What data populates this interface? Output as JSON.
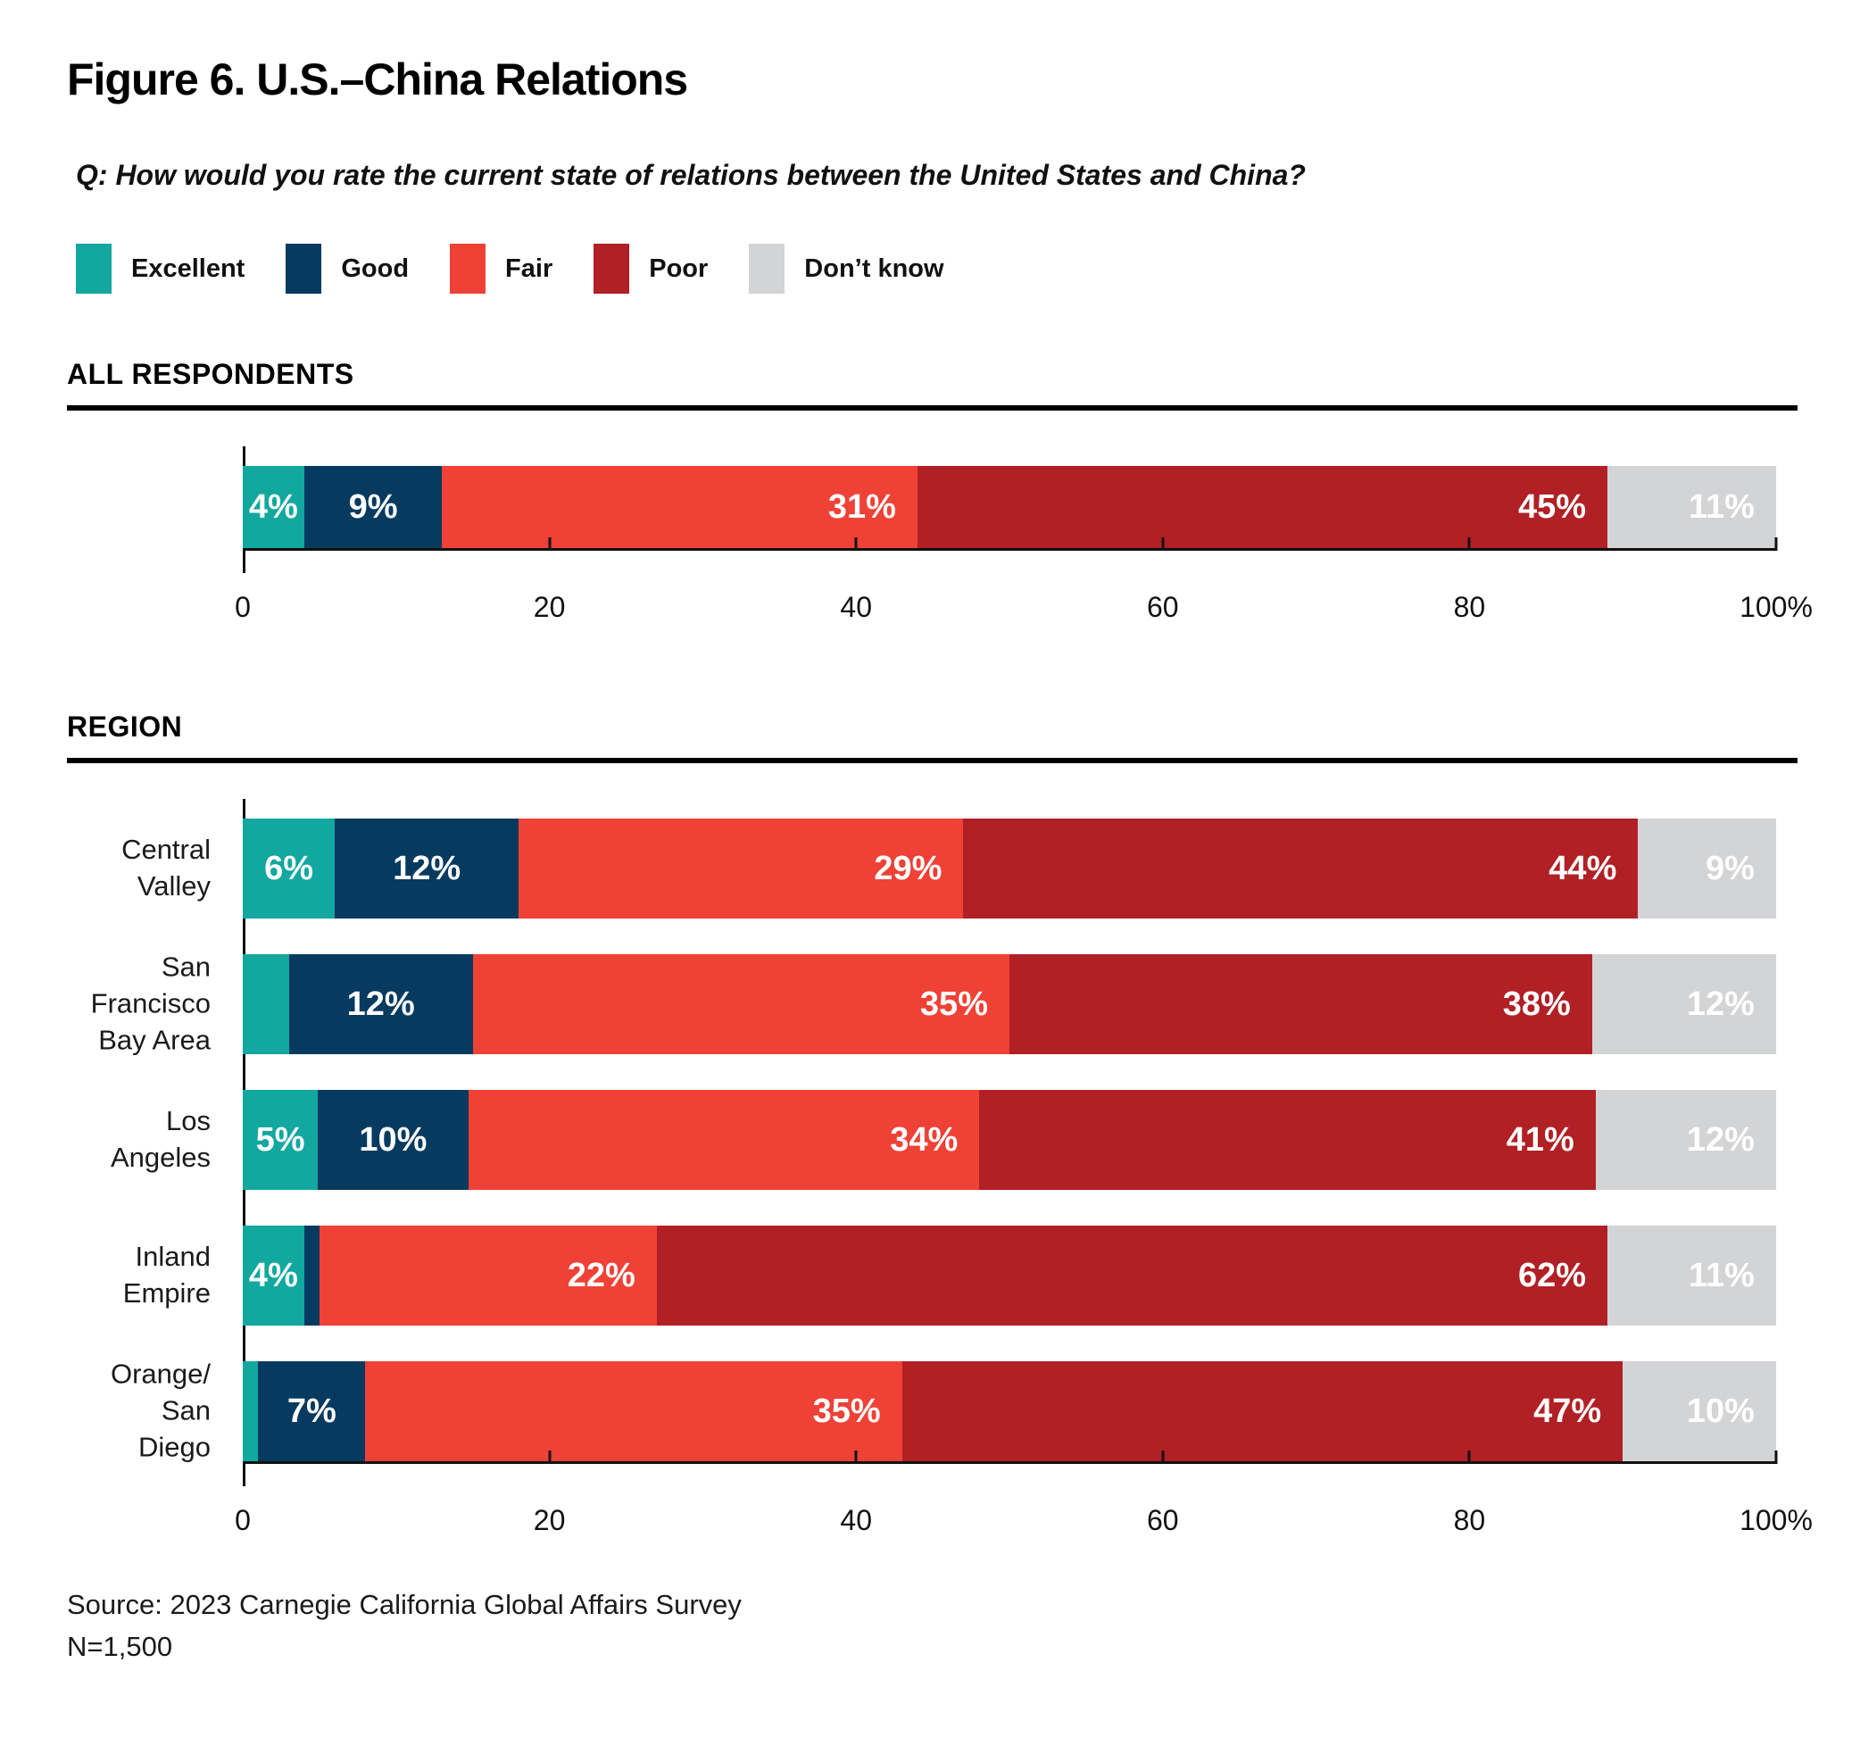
{
  "title": "Figure 6. U.S.–China Relations",
  "question": "Q: How would you rate the current state of relations between the United States and China?",
  "colors": {
    "excellent": "#12A79F",
    "good": "#063A5F",
    "fair": "#EF4136",
    "poor": "#B02025",
    "dont_know": "#D3D4D6",
    "axis": "#111111"
  },
  "legend": [
    {
      "label": "Excellent",
      "color": "#12A79F"
    },
    {
      "label": "Good",
      "color": "#063A5F"
    },
    {
      "label": "Fair",
      "color": "#EF4136"
    },
    {
      "label": "Poor",
      "color": "#B02025"
    },
    {
      "label": "Don’t know",
      "color": "#D3D4D6"
    }
  ],
  "sections": [
    {
      "heading": "ALL RESPONDENTS"
    },
    {
      "heading": "REGION"
    }
  ],
  "chart_data": [
    {
      "type": "bar",
      "stacked": true,
      "orientation": "horizontal",
      "section": "ALL RESPONDENTS",
      "categories": [
        ""
      ],
      "series": [
        {
          "name": "Excellent",
          "color": "#12A79F",
          "values": [
            4
          ]
        },
        {
          "name": "Good",
          "color": "#063A5F",
          "values": [
            9
          ]
        },
        {
          "name": "Fair",
          "color": "#EF4136",
          "values": [
            31
          ]
        },
        {
          "name": "Poor",
          "color": "#B02025",
          "values": [
            45
          ]
        },
        {
          "name": "Don’t know",
          "color": "#D3D4D6",
          "values": [
            11
          ]
        }
      ],
      "xlim": [
        0,
        100
      ],
      "xticks": [
        0,
        20,
        40,
        60,
        80,
        100
      ],
      "xtick_labels": [
        "0",
        "20",
        "40",
        "60",
        "80",
        "100%"
      ],
      "value_suffix": "%",
      "label_min": 4,
      "grid": false,
      "legend_position": "top"
    },
    {
      "type": "bar",
      "stacked": true,
      "orientation": "horizontal",
      "section": "REGION",
      "categories": [
        "Central Valley",
        "San Francisco\nBay Area",
        "Los Angeles",
        "Inland Empire",
        "Orange/\nSan Diego"
      ],
      "series": [
        {
          "name": "Excellent",
          "color": "#12A79F",
          "values": [
            6,
            3,
            5,
            4,
            1
          ]
        },
        {
          "name": "Good",
          "color": "#063A5F",
          "values": [
            12,
            12,
            10,
            1,
            7
          ]
        },
        {
          "name": "Fair",
          "color": "#EF4136",
          "values": [
            29,
            35,
            34,
            22,
            35
          ]
        },
        {
          "name": "Poor",
          "color": "#B02025",
          "values": [
            44,
            38,
            41,
            62,
            47
          ]
        },
        {
          "name": "Don’t know",
          "color": "#D3D4D6",
          "values": [
            9,
            12,
            12,
            11,
            10
          ]
        }
      ],
      "xlim": [
        0,
        100
      ],
      "xticks": [
        0,
        20,
        40,
        60,
        80,
        100
      ],
      "xtick_labels": [
        "0",
        "20",
        "40",
        "60",
        "80",
        "100%"
      ],
      "value_suffix": "%",
      "label_min": 4,
      "grid": false,
      "legend_position": "top"
    }
  ],
  "source": "Source: 2023 Carnegie California Global Affairs Survey",
  "sample_size": "N=1,500"
}
